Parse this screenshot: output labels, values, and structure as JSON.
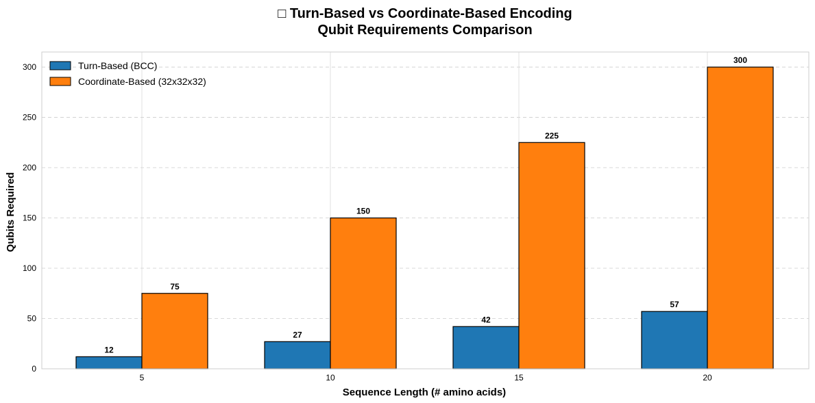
{
  "chart_data": {
    "type": "bar",
    "title_lines": [
      "□ Turn-Based vs Coordinate-Based Encoding",
      "Qubit Requirements Comparison"
    ],
    "xlabel": "Sequence Length (# amino acids)",
    "ylabel": "Qubits Required",
    "categories": [
      "5",
      "10",
      "15",
      "20"
    ],
    "series": [
      {
        "name": "Turn-Based (BCC)",
        "values": [
          12,
          27,
          42,
          57
        ],
        "color": "#1f77b4"
      },
      {
        "name": "Coordinate-Based (32x32x32)",
        "values": [
          75,
          150,
          225,
          300
        ],
        "color": "#ff7f0e"
      }
    ],
    "ylim": [
      0,
      315
    ],
    "yticks": [
      0,
      50,
      100,
      150,
      200,
      250,
      300
    ],
    "grid": {
      "y": "dashed",
      "x": "solid"
    },
    "legend_position": "top-left"
  }
}
